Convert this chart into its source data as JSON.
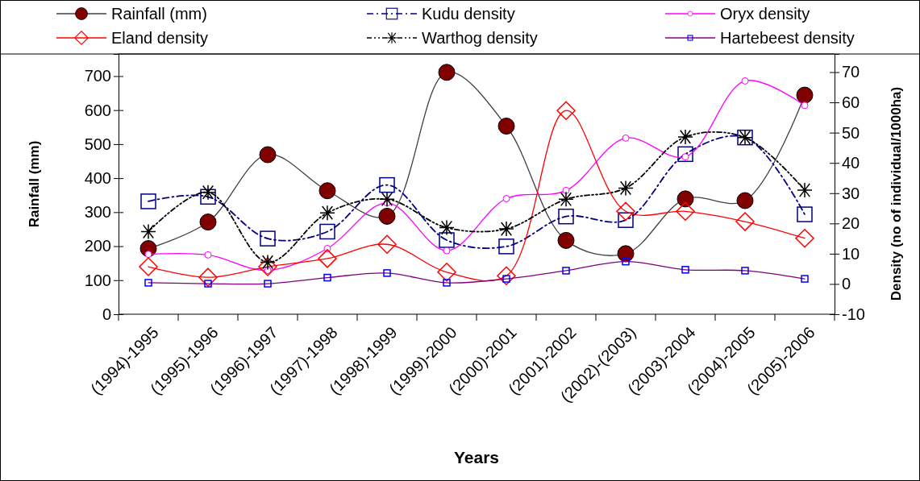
{
  "chart_data": {
    "type": "line",
    "xlabel": "Years",
    "ylabel": "Rainfall (mm)",
    "y2label": "Density (no of individual/1000ha)",
    "categories": [
      "(1994)-1995",
      "(1995)-1996",
      "(1996)-1997",
      "(1997)-1998",
      "(1998)-1999",
      "(1999)-2000",
      "(2000)-2001",
      "(2001)-2002",
      "(2002)-(2003)",
      "(2003)-2004",
      "(2004)-2005",
      "(2005)-2006"
    ],
    "ylim": [
      0,
      765
    ],
    "yticks": [
      0,
      100,
      200,
      300,
      400,
      500,
      600,
      700
    ],
    "y2lim": [
      -10,
      76
    ],
    "y2ticks": [
      -10,
      0,
      10,
      20,
      30,
      40,
      50,
      60,
      70
    ],
    "legend": "top",
    "grid": false,
    "series": [
      {
        "name": "Rainfall (mm)",
        "color": "#800000",
        "marker": "circle",
        "line_style": "solid",
        "values": [
          193,
          271,
          469,
          363,
          288,
          711,
          553,
          217,
          178,
          339,
          334,
          644
        ]
      },
      {
        "name": "Kudu density",
        "color": "#000080",
        "marker": "square",
        "line_style": "dashed",
        "axis": "y2",
        "values": [
          27.3,
          28.8,
          15.0,
          17.3,
          32.7,
          14.5,
          12.4,
          22.3,
          21.1,
          42.9,
          48.4,
          23.0
        ]
      },
      {
        "name": "Oryx density",
        "color": "#ff00ff",
        "marker": "circle",
        "line_style": "solid",
        "axis": "y2",
        "values": [
          9.8,
          9.6,
          4.5,
          11.7,
          26.8,
          11.0,
          28.2,
          30.9,
          48.2,
          42.0,
          67.1,
          59.0
        ]
      },
      {
        "name": "Eland density",
        "color": "#ff0000",
        "marker": "diamond",
        "line_style": "solid",
        "axis": "y2",
        "values": [
          5.7,
          2.2,
          5.7,
          8.4,
          13.1,
          3.9,
          2.7,
          57.3,
          24.0,
          24.0,
          20.6,
          15.1
        ]
      },
      {
        "name": "Warthog density",
        "color": "#000000",
        "marker": "cross",
        "line_style": "dotted",
        "axis": "y2",
        "values": [
          17.3,
          30.3,
          7.2,
          23.5,
          28.0,
          18.6,
          18.2,
          28.0,
          31.7,
          48.6,
          48.4,
          31.0
        ]
      },
      {
        "name": "Hartebeest density",
        "color": "#0000ff",
        "marker": "square",
        "line_style": "solid",
        "axis": "y2",
        "values": [
          0.4,
          0.1,
          0.1,
          2.1,
          3.6,
          0.4,
          1.7,
          4.4,
          7.4,
          4.7,
          4.4,
          1.7
        ]
      }
    ]
  }
}
